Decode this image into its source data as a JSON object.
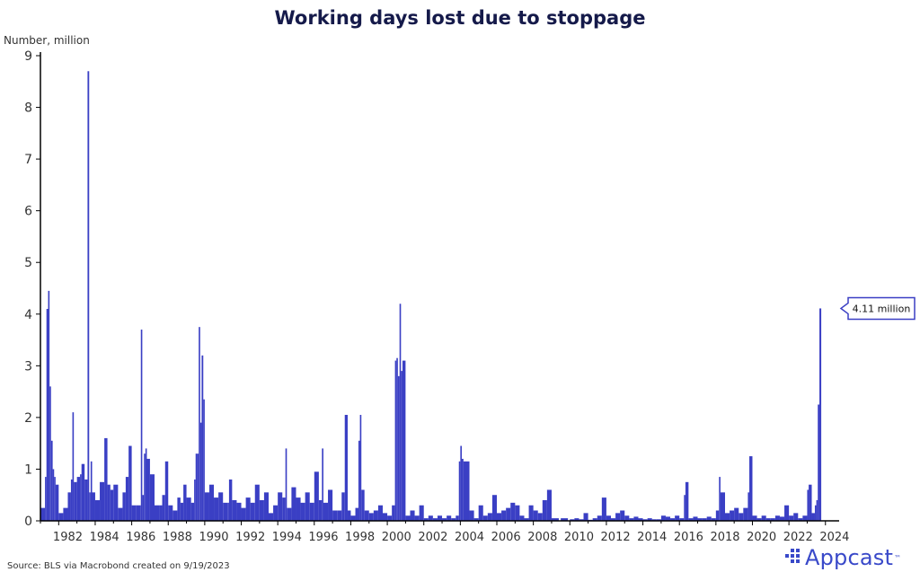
{
  "chart_data": {
    "type": "bar",
    "title": "Working days lost due to stoppage",
    "ylabel": "Number, million",
    "ylim": [
      0,
      9
    ],
    "yticks": [
      "0",
      "1",
      "2",
      "3",
      "4",
      "5",
      "6",
      "7",
      "8",
      "9"
    ],
    "xlim": [
      1981.0,
      2024.75
    ],
    "xticks": [
      "1982",
      "1984",
      "1986",
      "1988",
      "1990",
      "1992",
      "1994",
      "1996",
      "1998",
      "2000",
      "2002",
      "2004",
      "2006",
      "2008",
      "2010",
      "2012",
      "2014",
      "2016",
      "2018",
      "2020",
      "2022",
      "2024"
    ],
    "series": [
      {
        "color": "#3a3fc4",
        "points": [
          [
            1981.0,
            0.25
          ],
          [
            1981.25,
            0.85
          ],
          [
            1981.33,
            4.1
          ],
          [
            1981.42,
            4.45
          ],
          [
            1981.5,
            2.6
          ],
          [
            1981.58,
            1.55
          ],
          [
            1981.67,
            1.0
          ],
          [
            1981.75,
            0.85
          ],
          [
            1981.83,
            0.7
          ],
          [
            1982.0,
            0.15
          ],
          [
            1982.25,
            0.25
          ],
          [
            1982.5,
            0.55
          ],
          [
            1982.67,
            0.8
          ],
          [
            1982.75,
            2.1
          ],
          [
            1982.83,
            0.75
          ],
          [
            1983.0,
            0.85
          ],
          [
            1983.17,
            0.9
          ],
          [
            1983.25,
            1.1
          ],
          [
            1983.42,
            0.8
          ],
          [
            1983.58,
            8.7
          ],
          [
            1983.67,
            0.55
          ],
          [
            1983.75,
            1.15
          ],
          [
            1983.83,
            0.55
          ],
          [
            1984.0,
            0.4
          ],
          [
            1984.25,
            0.75
          ],
          [
            1984.5,
            1.6
          ],
          [
            1984.67,
            0.7
          ],
          [
            1984.83,
            0.6
          ],
          [
            1985.0,
            0.7
          ],
          [
            1985.25,
            0.25
          ],
          [
            1985.5,
            0.55
          ],
          [
            1985.67,
            0.85
          ],
          [
            1985.83,
            1.45
          ],
          [
            1986.0,
            0.3
          ],
          [
            1986.25,
            0.3
          ],
          [
            1986.5,
            3.7
          ],
          [
            1986.58,
            0.5
          ],
          [
            1986.67,
            1.3
          ],
          [
            1986.75,
            1.4
          ],
          [
            1986.83,
            1.2
          ],
          [
            1987.0,
            0.9
          ],
          [
            1987.25,
            0.3
          ],
          [
            1987.5,
            0.3
          ],
          [
            1987.67,
            0.5
          ],
          [
            1987.83,
            1.15
          ],
          [
            1988.0,
            0.3
          ],
          [
            1988.25,
            0.2
          ],
          [
            1988.5,
            0.45
          ],
          [
            1988.67,
            0.35
          ],
          [
            1988.83,
            0.7
          ],
          [
            1989.0,
            0.45
          ],
          [
            1989.25,
            0.35
          ],
          [
            1989.42,
            0.8
          ],
          [
            1989.5,
            1.3
          ],
          [
            1989.58,
            1.3
          ],
          [
            1989.67,
            3.75
          ],
          [
            1989.75,
            1.9
          ],
          [
            1989.83,
            3.2
          ],
          [
            1989.92,
            2.35
          ],
          [
            1990.0,
            0.55
          ],
          [
            1990.25,
            0.7
          ],
          [
            1990.5,
            0.45
          ],
          [
            1990.75,
            0.55
          ],
          [
            1991.0,
            0.35
          ],
          [
            1991.25,
            0.35
          ],
          [
            1991.33,
            0.8
          ],
          [
            1991.5,
            0.4
          ],
          [
            1991.75,
            0.35
          ],
          [
            1992.0,
            0.25
          ],
          [
            1992.25,
            0.45
          ],
          [
            1992.5,
            0.35
          ],
          [
            1992.75,
            0.7
          ],
          [
            1993.0,
            0.4
          ],
          [
            1993.25,
            0.55
          ],
          [
            1993.5,
            0.15
          ],
          [
            1993.75,
            0.3
          ],
          [
            1994.0,
            0.55
          ],
          [
            1994.25,
            0.45
          ],
          [
            1994.42,
            1.4
          ],
          [
            1994.5,
            0.25
          ],
          [
            1994.75,
            0.65
          ],
          [
            1995.0,
            0.45
          ],
          [
            1995.25,
            0.35
          ],
          [
            1995.5,
            0.55
          ],
          [
            1995.75,
            0.35
          ],
          [
            1996.0,
            0.95
          ],
          [
            1996.25,
            0.4
          ],
          [
            1996.42,
            1.4
          ],
          [
            1996.5,
            0.35
          ],
          [
            1996.75,
            0.6
          ],
          [
            1997.0,
            0.2
          ],
          [
            1997.25,
            0.2
          ],
          [
            1997.5,
            0.55
          ],
          [
            1997.67,
            2.05
          ],
          [
            1997.83,
            0.2
          ],
          [
            1998.0,
            0.1
          ],
          [
            1998.25,
            0.25
          ],
          [
            1998.42,
            1.55
          ],
          [
            1998.5,
            2.05
          ],
          [
            1998.58,
            0.6
          ],
          [
            1998.75,
            0.2
          ],
          [
            1999.0,
            0.15
          ],
          [
            1999.25,
            0.2
          ],
          [
            1999.5,
            0.3
          ],
          [
            1999.75,
            0.15
          ],
          [
            2000.0,
            0.1
          ],
          [
            2000.25,
            0.3
          ],
          [
            2000.42,
            3.1
          ],
          [
            2000.5,
            3.15
          ],
          [
            2000.58,
            2.8
          ],
          [
            2000.67,
            4.2
          ],
          [
            2000.75,
            2.9
          ],
          [
            2000.83,
            3.1
          ],
          [
            2001.0,
            0.1
          ],
          [
            2001.25,
            0.2
          ],
          [
            2001.5,
            0.1
          ],
          [
            2001.75,
            0.3
          ],
          [
            2002.0,
            0.05
          ],
          [
            2002.25,
            0.1
          ],
          [
            2002.5,
            0.05
          ],
          [
            2002.75,
            0.1
          ],
          [
            2003.0,
            0.05
          ],
          [
            2003.25,
            0.1
          ],
          [
            2003.5,
            0.05
          ],
          [
            2003.75,
            0.1
          ],
          [
            2003.92,
            1.15
          ],
          [
            2004.0,
            1.45
          ],
          [
            2004.08,
            1.2
          ],
          [
            2004.17,
            1.15
          ],
          [
            2004.5,
            0.2
          ],
          [
            2004.75,
            0.05
          ],
          [
            2005.0,
            0.3
          ],
          [
            2005.25,
            0.1
          ],
          [
            2005.5,
            0.15
          ],
          [
            2005.75,
            0.5
          ],
          [
            2006.0,
            0.15
          ],
          [
            2006.25,
            0.2
          ],
          [
            2006.5,
            0.25
          ],
          [
            2006.75,
            0.35
          ],
          [
            2007.0,
            0.3
          ],
          [
            2007.25,
            0.1
          ],
          [
            2007.5,
            0.05
          ],
          [
            2007.75,
            0.3
          ],
          [
            2008.0,
            0.2
          ],
          [
            2008.25,
            0.15
          ],
          [
            2008.5,
            0.4
          ],
          [
            2008.75,
            0.6
          ],
          [
            2009.0,
            0.05
          ],
          [
            2009.5,
            0.05
          ],
          [
            2010.0,
            0.03
          ],
          [
            2010.25,
            0.05
          ],
          [
            2010.5,
            0.03
          ],
          [
            2010.75,
            0.15
          ],
          [
            2011.0,
            0.02
          ],
          [
            2011.25,
            0.05
          ],
          [
            2011.5,
            0.1
          ],
          [
            2011.75,
            0.45
          ],
          [
            2012.0,
            0.1
          ],
          [
            2012.25,
            0.05
          ],
          [
            2012.5,
            0.15
          ],
          [
            2012.75,
            0.2
          ],
          [
            2013.0,
            0.1
          ],
          [
            2013.25,
            0.05
          ],
          [
            2013.5,
            0.08
          ],
          [
            2013.75,
            0.05
          ],
          [
            2014.0,
            0.03
          ],
          [
            2014.25,
            0.05
          ],
          [
            2014.5,
            0.03
          ],
          [
            2014.75,
            0.03
          ],
          [
            2015.0,
            0.1
          ],
          [
            2015.25,
            0.08
          ],
          [
            2015.5,
            0.05
          ],
          [
            2015.75,
            0.1
          ],
          [
            2016.0,
            0.05
          ],
          [
            2016.25,
            0.5
          ],
          [
            2016.33,
            0.75
          ],
          [
            2016.5,
            0.05
          ],
          [
            2016.75,
            0.08
          ],
          [
            2017.0,
            0.05
          ],
          [
            2017.25,
            0.05
          ],
          [
            2017.5,
            0.08
          ],
          [
            2017.75,
            0.05
          ],
          [
            2018.0,
            0.2
          ],
          [
            2018.17,
            0.85
          ],
          [
            2018.25,
            0.55
          ],
          [
            2018.5,
            0.15
          ],
          [
            2018.75,
            0.2
          ],
          [
            2019.0,
            0.25
          ],
          [
            2019.25,
            0.15
          ],
          [
            2019.5,
            0.25
          ],
          [
            2019.75,
            0.55
          ],
          [
            2019.83,
            1.25
          ],
          [
            2020.0,
            0.1
          ],
          [
            2020.25,
            0.05
          ],
          [
            2020.5,
            0.1
          ],
          [
            2020.75,
            0.05
          ],
          [
            2021.0,
            0.05
          ],
          [
            2021.25,
            0.1
          ],
          [
            2021.5,
            0.08
          ],
          [
            2021.75,
            0.3
          ],
          [
            2022.0,
            0.1
          ],
          [
            2022.25,
            0.15
          ],
          [
            2022.5,
            0.05
          ],
          [
            2022.75,
            0.1
          ],
          [
            2023.0,
            0.6
          ],
          [
            2023.08,
            0.7
          ],
          [
            2023.25,
            0.15
          ],
          [
            2023.42,
            0.3
          ],
          [
            2023.5,
            0.4
          ],
          [
            2023.58,
            2.25
          ],
          [
            2023.67,
            4.11
          ]
        ]
      }
    ],
    "annotation": "4.11 million",
    "annotation_point": [
      2023.67,
      4.11
    ]
  },
  "footer": {
    "source": "Source: BLS via Macrobond created on 9/19/2023",
    "logo_text": "Appcast",
    "logo_tm": "™"
  },
  "colors": {
    "bar": "#3a3fc4",
    "title": "#151a4a",
    "accent": "#3949c9"
  }
}
